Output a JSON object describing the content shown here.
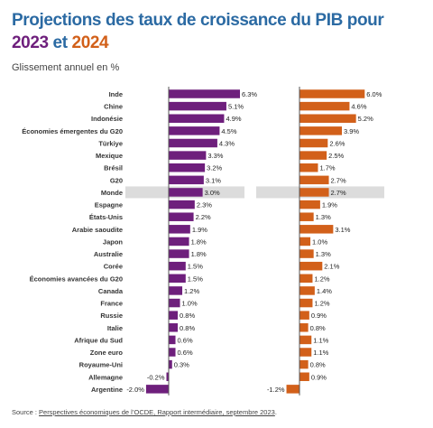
{
  "title": {
    "prefix": "Projections des taux de croissance du PIB pour ",
    "year1": "2023",
    "mid": " et ",
    "year2": "2024"
  },
  "subtitle": "Glissement annuel en %",
  "source": {
    "label": "Source : ",
    "link_text": "Perspectives économiques de l’OCDE, Rapport intermédiaire, septembre 2023",
    "suffix": "."
  },
  "chart_data": [
    {
      "type": "bar",
      "orientation": "horizontal",
      "series": [
        {
          "name": "2023",
          "color": "#6e1f7c",
          "values": [
            6.3,
            5.1,
            4.9,
            4.5,
            4.3,
            3.3,
            3.2,
            3.1,
            3.0,
            2.3,
            2.2,
            1.9,
            1.8,
            1.8,
            1.5,
            1.5,
            1.2,
            1.0,
            0.8,
            0.8,
            0.6,
            0.6,
            0.3,
            -0.2,
            -2.0
          ]
        }
      ],
      "data_labels": [
        "6.3%",
        "5.1%",
        "4.9%",
        "4.5%",
        "4.3%",
        "3.3%",
        "3.2%",
        "3.1%",
        "3.0%",
        "2.3%",
        "2.2%",
        "1.9%",
        "1.8%",
        "1.8%",
        "1.5%",
        "1.5%",
        "1.2%",
        "1.0%",
        "0.8%",
        "0.8%",
        "0.6%",
        "0.6%",
        "0.3%",
        "-0.2%",
        "-2.0%"
      ],
      "categories": [
        "Inde",
        "Chine",
        "Indonésie",
        "Économies émergentes du G20",
        "Türkiye",
        "Mexique",
        "Brésil",
        "G20",
        "Monde",
        "Espagne",
        "États-Unis",
        "Arabie saoudite",
        "Japon",
        "Australie",
        "Corée",
        "Économies avancées du G20",
        "Canada",
        "France",
        "Russie",
        "Italie",
        "Afrique du Sud",
        "Zone euro",
        "Royaume-Uni",
        "Allemagne",
        "Argentine"
      ],
      "highlight_category": "Monde",
      "xlim": [
        -2.0,
        6.3
      ]
    },
    {
      "type": "bar",
      "orientation": "horizontal",
      "series": [
        {
          "name": "2024",
          "color": "#d2601a",
          "values": [
            6.0,
            4.6,
            5.2,
            3.9,
            2.6,
            2.5,
            1.7,
            2.7,
            2.7,
            1.9,
            1.3,
            3.1,
            1.0,
            1.3,
            2.1,
            1.2,
            1.4,
            1.2,
            0.9,
            0.8,
            1.1,
            1.1,
            0.8,
            0.9,
            -1.2
          ]
        }
      ],
      "data_labels": [
        "6.0%",
        "4.6%",
        "5.2%",
        "3.9%",
        "2.6%",
        "2.5%",
        "1.7%",
        "2.7%",
        "2.7%",
        "1.9%",
        "1.3%",
        "3.1%",
        "1.0%",
        "1.3%",
        "2.1%",
        "1.2%",
        "1.4%",
        "1.2%",
        "0.9%",
        "0.8%",
        "1.1%",
        "1.1%",
        "0.8%",
        "0.9%",
        "-1.2%"
      ],
      "categories": [
        "Inde",
        "Chine",
        "Indonésie",
        "Économies émergentes du G20",
        "Türkiye",
        "Mexique",
        "Brésil",
        "G20",
        "Monde",
        "Espagne",
        "États-Unis",
        "Arabie saoudite",
        "Japon",
        "Australie",
        "Corée",
        "Économies avancées du G20",
        "Canada",
        "France",
        "Russie",
        "Italie",
        "Afrique du Sud",
        "Zone euro",
        "Royaume-Uni",
        "Allemagne",
        "Argentine"
      ],
      "highlight_category": "Monde",
      "xlim": [
        -1.2,
        6.0
      ]
    }
  ]
}
